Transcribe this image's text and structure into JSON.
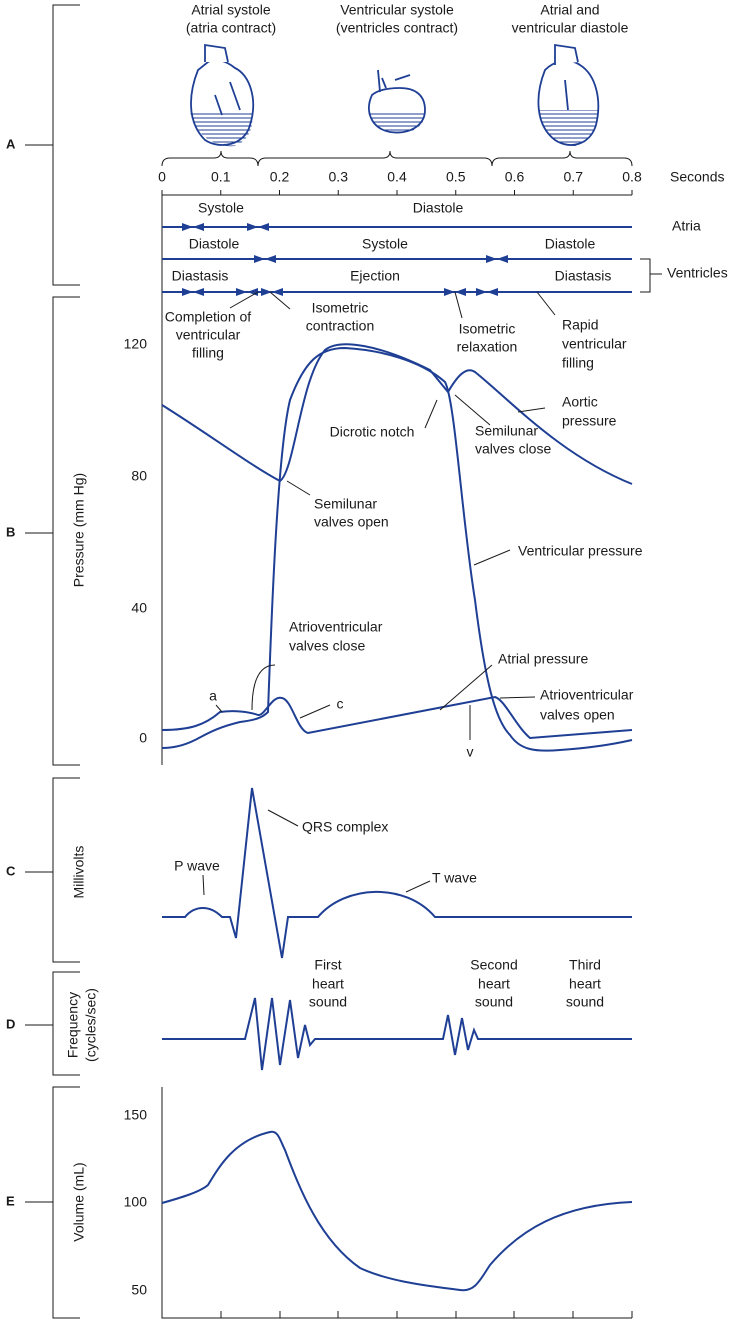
{
  "panel_labels": [
    "A",
    "B",
    "C",
    "D",
    "E"
  ],
  "header": [
    {
      "lines": [
        "Atrial systole",
        "(atria contract)"
      ]
    },
    {
      "lines": [
        "Ventricular systole",
        "(ventricles contract)"
      ]
    },
    {
      "lines": [
        "Atrial and",
        "ventricular diastole"
      ]
    }
  ],
  "time_axis": {
    "label": "Seconds",
    "ticks": [
      "0",
      "0.1",
      "0.2",
      "0.3",
      "0.4",
      "0.5",
      "0.6",
      "0.7",
      "0.8"
    ]
  },
  "phases": {
    "atria": "Atria",
    "ventricles": "Ventricles",
    "labels": [
      "Systole",
      "Diastole",
      "Diastole",
      "Systole",
      "Diastole",
      "Diastasis",
      "Ejection",
      "Diastasis"
    ]
  },
  "pressure_axis": {
    "title": "Pressure (mm Hg)",
    "ticks": [
      "120",
      "80",
      "40",
      "0"
    ]
  },
  "ecg_axis": {
    "title": "Millivolts"
  },
  "sound_axis": {
    "title": [
      "Frequency",
      "(cycles/sec)"
    ]
  },
  "volume_axis": {
    "title": "Volume (mL)",
    "ticks": [
      "150",
      "100",
      "50"
    ]
  },
  "annotations": [
    {
      "lines": [
        "Completion of",
        "ventricular",
        "filling"
      ]
    },
    {
      "lines": [
        "Isometric",
        "contraction"
      ]
    },
    {
      "lines": [
        "Isometric",
        "relaxation"
      ]
    },
    {
      "lines": [
        "Rapid",
        "ventricular",
        "filling"
      ]
    },
    {
      "lines": [
        "Aortic",
        "pressure"
      ]
    },
    {
      "lines": [
        "Dicrotic notch"
      ]
    },
    {
      "lines": [
        "Semilunar",
        "valves close"
      ]
    },
    {
      "lines": [
        "Semilunar",
        "valves open"
      ]
    },
    {
      "lines": [
        "Ventricular pressure"
      ]
    },
    {
      "lines": [
        "Atrioventricular",
        "valves close"
      ]
    },
    {
      "lines": [
        "Atrial pressure"
      ]
    },
    {
      "lines": [
        "a"
      ]
    },
    {
      "lines": [
        "c"
      ]
    },
    {
      "lines": [
        "Atrioventricular",
        "valves open"
      ]
    },
    {
      "lines": [
        "v"
      ]
    },
    {
      "lines": [
        "QRS complex"
      ]
    },
    {
      "lines": [
        "P wave"
      ]
    },
    {
      "lines": [
        "T wave"
      ]
    },
    {
      "lines": [
        "First",
        "heart",
        "sound"
      ]
    },
    {
      "lines": [
        "Second",
        "heart",
        "sound"
      ]
    },
    {
      "lines": [
        "Third",
        "heart",
        "sound"
      ]
    }
  ]
}
